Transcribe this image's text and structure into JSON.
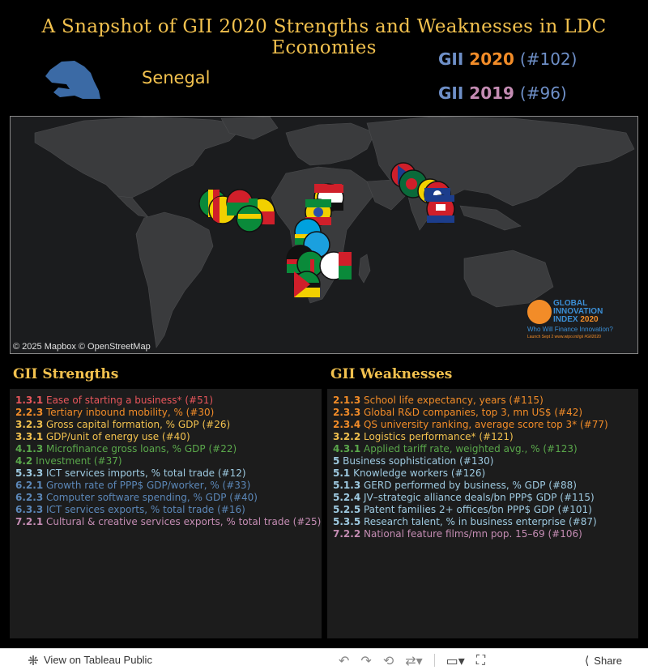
{
  "title": "A Snapshot of GII 2020 Strengths and Weaknesses in LDC Economies",
  "country": "Senegal",
  "ranks": [
    {
      "gii": "GII",
      "year": "2020",
      "rank": "(#102)"
    },
    {
      "gii": "GII",
      "year": "2019",
      "rank": "(#96)"
    }
  ],
  "map": {
    "attribution": "© 2025 Mapbox  © OpenStreetMap",
    "logo": {
      "line1": "GLOBAL",
      "line2": "INNOVATION",
      "line3a": "INDEX",
      "line3b": "2020",
      "tagline": "Who Will Finance Innovation?",
      "small": "Launch Sept 2        www.wipo.int/gii        #GII2020"
    }
  },
  "strengths_title": "GII  Strengths",
  "weaknesses_title": "GII  Weaknesses",
  "strengths": [
    {
      "code": "1.3.1",
      "text": " Ease of starting a business*  (#51)",
      "color": "#e8565b"
    },
    {
      "code": "2.2.3",
      "text": " Tertiary inbound mobility, %  (#30)",
      "color": "#f28c28"
    },
    {
      "code": "3.2.3",
      "text": " Gross capital formation, % GDP  (#26)",
      "color": "#f2c14e"
    },
    {
      "code": "3.3.1",
      "text": " GDP/unit of energy use  (#40)",
      "color": "#f2c14e"
    },
    {
      "code": "4.1.3",
      "text": " Microfinance gross loans, % GDP  (#22)",
      "color": "#5aa84b"
    },
    {
      "code": "4.2",
      "text": " Investment  (#37)",
      "color": "#5aa84b"
    },
    {
      "code": "5.3.3",
      "text": " ICT services imports, % total trade  (#12)",
      "color": "#9ecae1"
    },
    {
      "code": "6.2.1",
      "text": " Growth rate of PPP$ GDP/worker, %  (#33)",
      "color": "#5b87b8"
    },
    {
      "code": "6.2.3",
      "text": " Computer software spending, % GDP  (#40)",
      "color": "#5b87b8"
    },
    {
      "code": "6.3.3",
      "text": " ICT services exports, % total trade  (#16)",
      "color": "#5b87b8"
    },
    {
      "code": "7.2.1",
      "text": " Cultural & creative services exports, % total trade  (#25)",
      "color": "#c48cb3"
    }
  ],
  "weaknesses": [
    {
      "code": "2.1.3",
      "text": " School life expectancy, years  (#115)",
      "color": "#f28c28"
    },
    {
      "code": "2.3.3",
      "text": " Global R&D companies, top 3, mn US$  (#42)",
      "color": "#f28c28"
    },
    {
      "code": "2.3.4",
      "text": " QS university ranking, average score top 3*  (#77)",
      "color": "#f28c28"
    },
    {
      "code": "3.2.2",
      "text": " Logistics performance*  (#121)",
      "color": "#f2c14e"
    },
    {
      "code": "4.3.1",
      "text": " Applied tariff rate, weighted avg., %  (#123)",
      "color": "#5aa84b"
    },
    {
      "code": "5",
      "text": " Business sophistication  (#130)",
      "color": "#9ecae1"
    },
    {
      "code": "5.1",
      "text": " Knowledge workers  (#126)",
      "color": "#9ecae1"
    },
    {
      "code": "5.1.3",
      "text": " GERD performed by business, % GDP  (#88)",
      "color": "#9ecae1"
    },
    {
      "code": "5.2.4",
      "text": " JV–strategic alliance deals/bn PPP$ GDP  (#115)",
      "color": "#9ecae1"
    },
    {
      "code": "5.2.5",
      "text": " Patent families 2+ offices/bn PPP$ GDP  (#101)",
      "color": "#9ecae1"
    },
    {
      "code": "5.3.5",
      "text": " Research talent, % in business enterprise  (#87)",
      "color": "#9ecae1"
    },
    {
      "code": "7.2.2",
      "text": " National feature films/mn pop. 15–69  (#106)",
      "color": "#c48cb3"
    }
  ],
  "footer": {
    "view_label": "View on Tableau Public",
    "share_label": "Share"
  }
}
